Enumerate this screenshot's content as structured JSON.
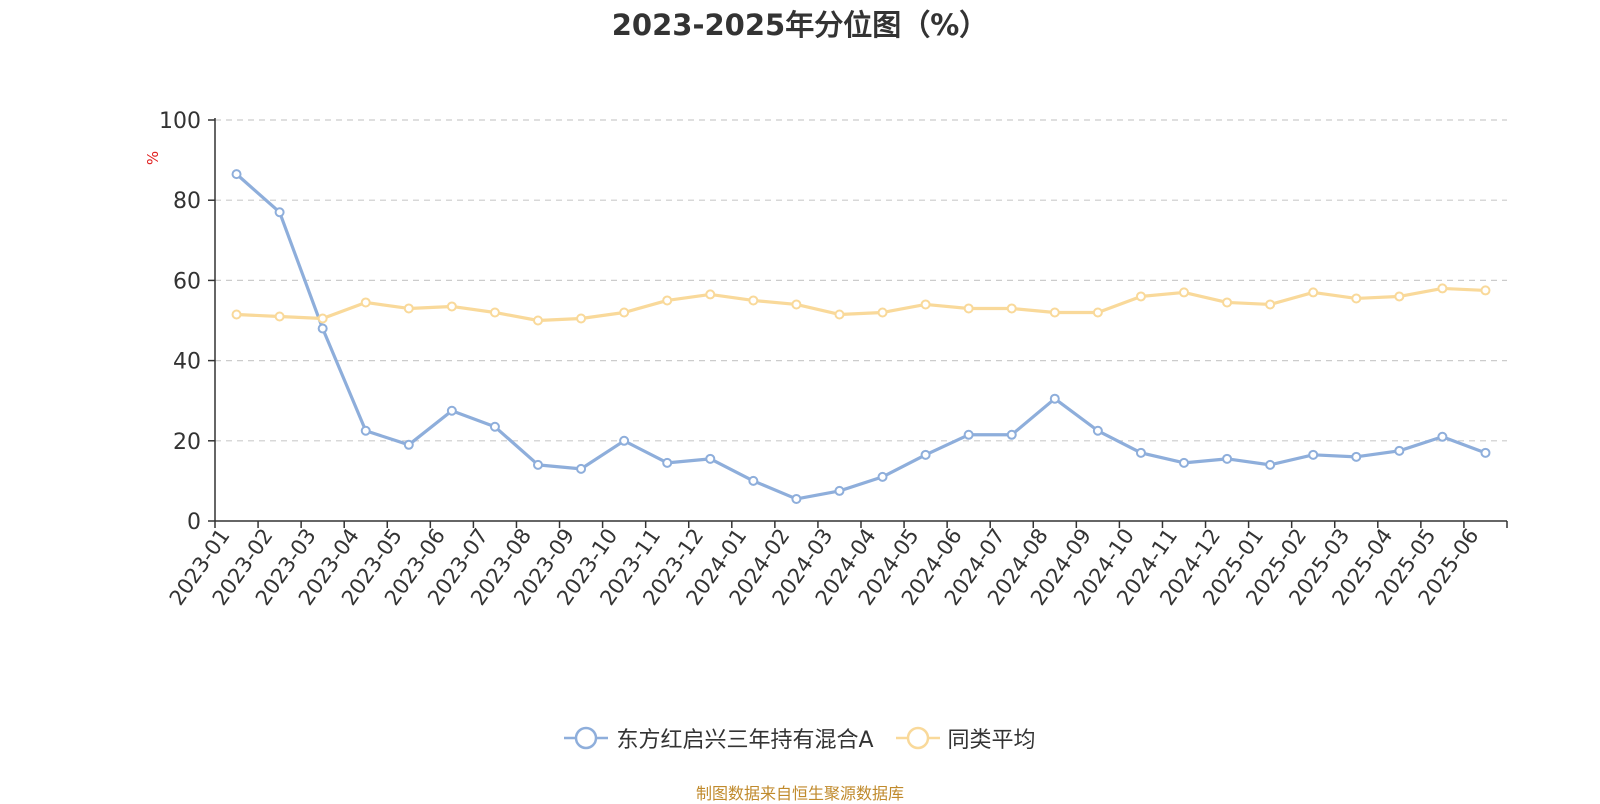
{
  "chart_data": {
    "type": "line",
    "title": "2023-2025年分位图（%）",
    "ylabel": "%",
    "xlabel": "",
    "ylim": [
      0,
      100
    ],
    "yticks": [
      0,
      20,
      40,
      60,
      80,
      100
    ],
    "grid": true,
    "legend_position": "bottom",
    "categories": [
      "2023-01",
      "2023-02",
      "2023-03",
      "2023-04",
      "2023-05",
      "2023-06",
      "2023-07",
      "2023-08",
      "2023-09",
      "2023-10",
      "2023-11",
      "2023-12",
      "2024-01",
      "2024-02",
      "2024-03",
      "2024-04",
      "2024-05",
      "2024-06",
      "2024-07",
      "2024-08",
      "2024-09",
      "2024-10",
      "2024-11",
      "2024-12",
      "2025-01",
      "2025-02",
      "2025-03",
      "2025-04",
      "2025-05",
      "2025-06"
    ],
    "series": [
      {
        "name": "东方红启兴三年持有混合A",
        "color": "#8eaedb",
        "values": [
          86.5,
          77.0,
          48.0,
          22.5,
          19.0,
          27.5,
          23.5,
          14.0,
          13.0,
          20.0,
          14.5,
          15.5,
          10.0,
          5.5,
          7.5,
          11.0,
          16.5,
          21.5,
          21.5,
          30.5,
          22.5,
          17.0,
          14.5,
          15.5,
          14.0,
          16.5,
          16.0,
          17.5,
          21.0,
          17.0
        ]
      },
      {
        "name": "同类平均",
        "color": "#f9d99a",
        "values": [
          51.5,
          51.0,
          50.5,
          54.5,
          53.0,
          53.5,
          52.0,
          50.0,
          50.5,
          52.0,
          55.0,
          56.5,
          55.0,
          54.0,
          51.5,
          52.0,
          54.0,
          53.0,
          53.0,
          52.0,
          52.0,
          56.0,
          57.0,
          54.5,
          54.0,
          57.0,
          55.5,
          56.0,
          58.0,
          57.5
        ]
      }
    ]
  },
  "source_note": "制图数据来自恒生聚源数据库",
  "colors": {
    "axis": "#333333",
    "grid": "#cccccc",
    "ylabel": "#e02020",
    "text": "#333333"
  }
}
